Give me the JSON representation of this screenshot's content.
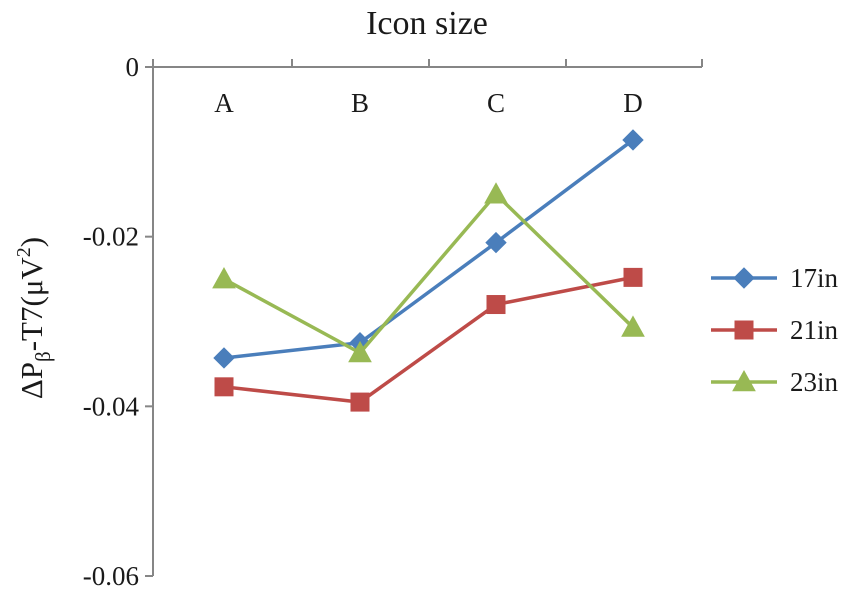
{
  "chart_data": {
    "type": "line",
    "title": "Icon size",
    "ylabel": "ΔPβ-T7(μV²)",
    "ylabel_parts": {
      "base": "ΔP",
      "sub": "β",
      "mid": "-T7(μV",
      "sup": "2",
      "end": ")"
    },
    "xlabel": "",
    "categories": [
      "A",
      "B",
      "C",
      "D"
    ],
    "x_axis_position": "top",
    "ylim": [
      -0.06,
      0
    ],
    "yticks": [
      0,
      -0.02,
      -0.04,
      -0.06
    ],
    "ytick_labels": [
      "0",
      "-0.02",
      "-0.04",
      "-0.06"
    ],
    "grid": false,
    "legend_position": "right",
    "series": [
      {
        "name": "17in",
        "color": "#4a7ebb",
        "marker": "diamond",
        "values": [
          -0.0343,
          -0.0325,
          -0.0207,
          -0.0086
        ]
      },
      {
        "name": "21in",
        "color": "#be4b48",
        "marker": "square",
        "values": [
          -0.0377,
          -0.0395,
          -0.028,
          -0.0248
        ]
      },
      {
        "name": "23in",
        "color": "#98b954",
        "marker": "triangle",
        "values": [
          -0.025,
          -0.0337,
          -0.015,
          -0.0307
        ]
      }
    ]
  }
}
